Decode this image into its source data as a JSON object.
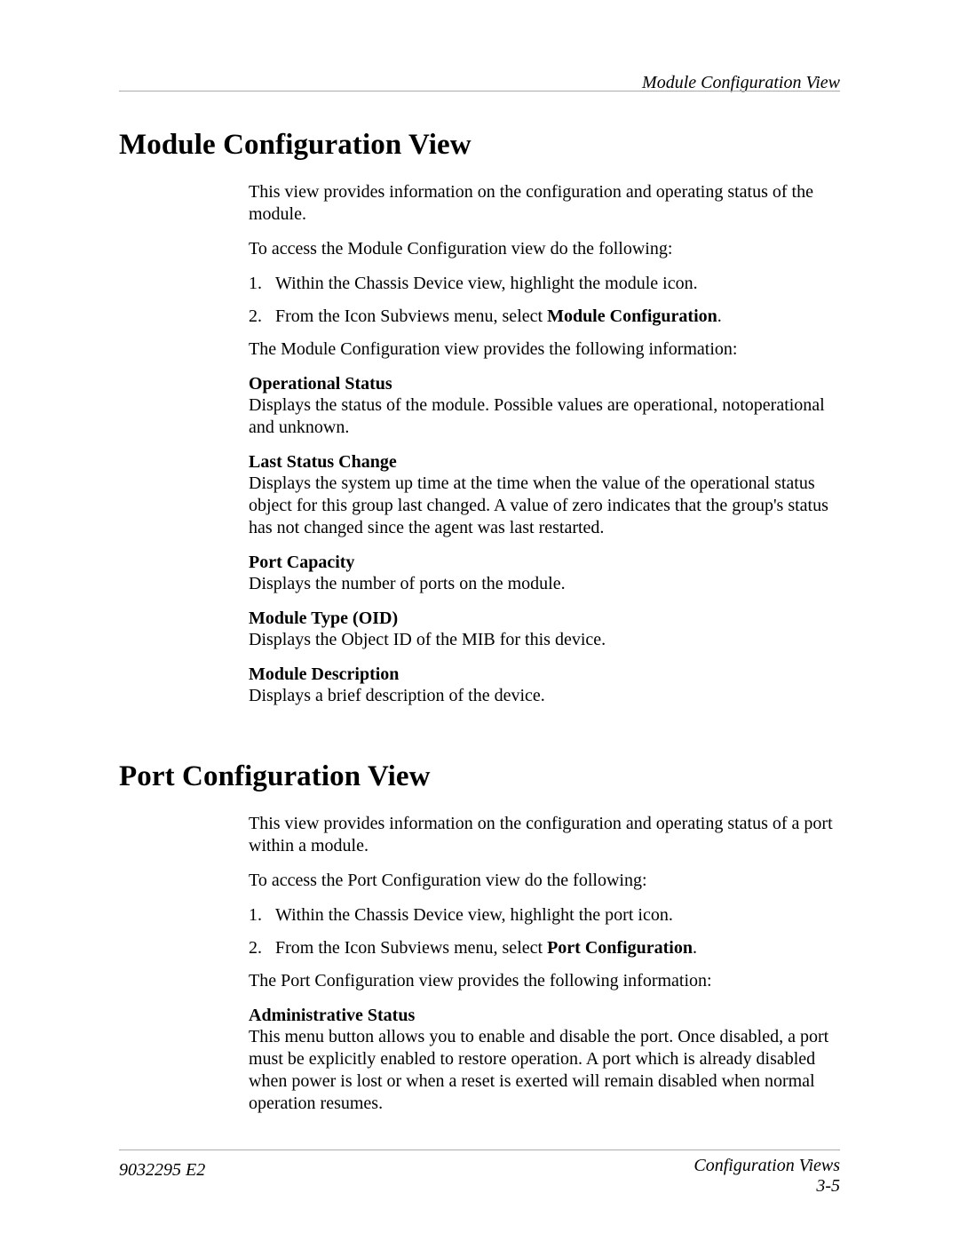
{
  "running_head": "Module Configuration View",
  "section1": {
    "title": "Module Configuration View",
    "intro": "This view provides information on the configuration and operating status of the module.",
    "access_lead": "To access the Module Configuration view do the following:",
    "steps": [
      {
        "num": "1.",
        "text_before": "Within the Chassis Device view, highlight the module icon.",
        "bold": "",
        "text_after": ""
      },
      {
        "num": "2.",
        "text_before": "From the Icon Subviews menu, select ",
        "bold": "Module Configuration",
        "text_after": "."
      }
    ],
    "provides": "The Module Configuration view provides the following information:",
    "defs": [
      {
        "title": "Operational Status",
        "text": "Displays the status of the module. Possible values are operational, notoperational and unknown."
      },
      {
        "title": "Last Status Change",
        "text": "Displays the system up time at the time when the value of the operational status object for this group last changed. A value of zero indicates that the group's status has not changed since the agent was last restarted."
      },
      {
        "title": "Port Capacity",
        "text": "Displays the number of ports on the module."
      },
      {
        "title": "Module Type (OID)",
        "text": "Displays the Object ID of the MIB for this device."
      },
      {
        "title": "Module Description",
        "text": "Displays a brief description of the device."
      }
    ]
  },
  "section2": {
    "title": "Port Configuration View",
    "intro": "This view provides information on the configuration and operating status of a port within a module.",
    "access_lead": "To access the Port Configuration view do the following:",
    "steps": [
      {
        "num": "1.",
        "text_before": "Within the Chassis Device view, highlight the port icon.",
        "bold": "",
        "text_after": ""
      },
      {
        "num": "2.",
        "text_before": "From the Icon Subviews menu, select ",
        "bold": "Port Configuration",
        "text_after": "."
      }
    ],
    "provides": "The Port Configuration view provides the following information:",
    "defs": [
      {
        "title": "Administrative Status",
        "text": "This menu button allows you to enable and disable the port. Once disabled, a port must be explicitly enabled to restore operation. A port which is already disabled when power is lost or when a reset is exerted will remain disabled when normal operation resumes."
      }
    ]
  },
  "footer": {
    "left": "9032295 E2",
    "right_line1": "Configuration Views",
    "right_line2": "3-5"
  }
}
